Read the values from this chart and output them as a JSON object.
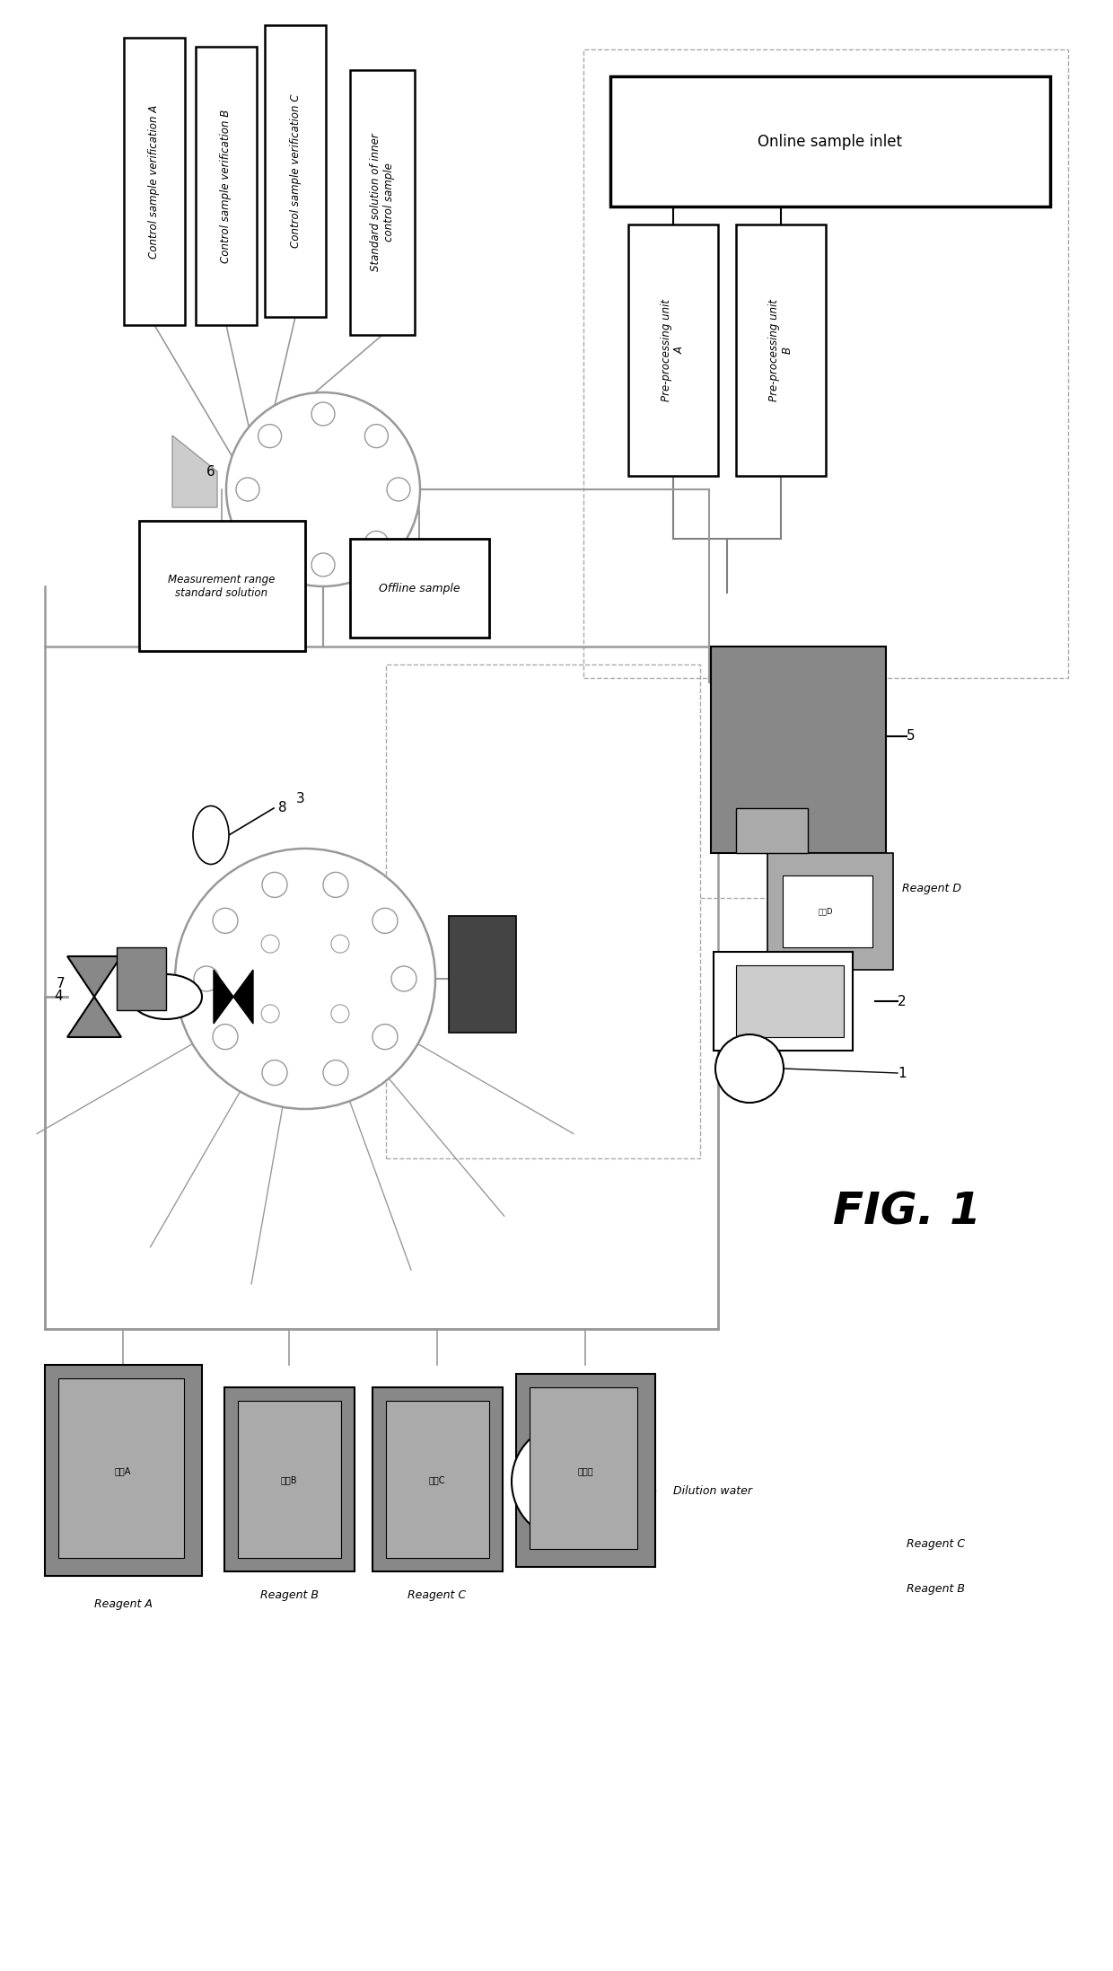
{
  "title": "FIG. 1",
  "bg_color": "#ffffff",
  "fig_width": 12.4,
  "fig_height": 21.95,
  "labels": {
    "control_sample_A": "Control sample verification A",
    "control_sample_B": "Control sample verification B",
    "control_sample_C": "Control sample verification C",
    "standard_solution": "Standard solution of inner\ncontrol sample",
    "online_sample_inlet": "Online sample inlet",
    "pre_processing_A": "Pre-processing unit\nA",
    "pre_processing_B": "Pre-processing unit\nB",
    "measurement_range": "Measurement range\nstandard solution",
    "offline_sample": "Offline sample",
    "reagent_A": "Reagent A",
    "reagent_B": "Reagent B",
    "reagent_C": "Reagent C",
    "reagent_D": "Reagent D",
    "dilution_water": "Dilution water",
    "num1": "1",
    "num2": "2",
    "num3": "3",
    "num4": "4",
    "num5": "5",
    "num6": "6",
    "num7": "7",
    "num8": "8"
  },
  "colors": {
    "dark_gray": "#888888",
    "medium_gray": "#aaaaaa",
    "light_gray": "#cccccc",
    "line_gray": "#999999",
    "dashed_gray": "#aaaaaa",
    "black": "#000000",
    "white": "#ffffff"
  }
}
